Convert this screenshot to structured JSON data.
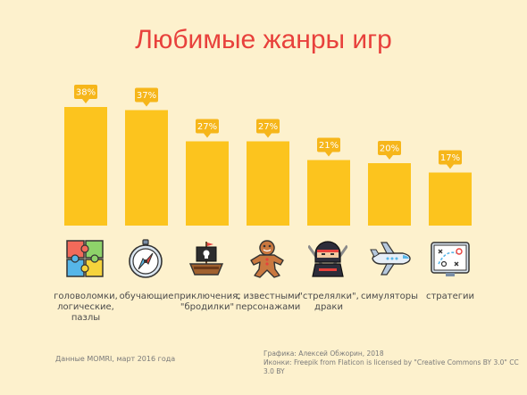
{
  "chart_data": {
    "type": "bar",
    "title": "Любимые жанры игр",
    "categories": [
      "головоломки, логические, пазлы",
      "обучающие",
      "приключения, \"бродилки\"",
      "с известными персонажами",
      "\"стрелялки\", драки",
      "симуляторы",
      "стратегии"
    ],
    "category_lines": [
      [
        "головоломки,",
        "логические,",
        "пазлы"
      ],
      [
        "обучающие"
      ],
      [
        "приключения,",
        "\"бродилки\""
      ],
      [
        "с известными",
        "персонажами"
      ],
      [
        "\"стрелялки\",",
        "драки"
      ],
      [
        "симуляторы"
      ],
      [
        "стратегии"
      ]
    ],
    "values": [
      38,
      37,
      27,
      27,
      21,
      20,
      17
    ],
    "value_labels": [
      "38%",
      "37%",
      "27%",
      "27%",
      "21%",
      "20%",
      "17%"
    ],
    "ylim": [
      0,
      38
    ],
    "xlabel": "",
    "ylabel": "",
    "grid": false,
    "colors": {
      "bar": "#fcc41e",
      "badge": "#f6b61a",
      "title": "#e8413c"
    }
  },
  "icons": [
    "puzzle-icon",
    "compass-icon",
    "pirate-ship-icon",
    "gingerbread-man-icon",
    "ninja-icon",
    "airplane-icon",
    "strategy-board-icon"
  ],
  "footer": {
    "source": "Данные MOMRI, март 2016 года",
    "credit_line1": "Графика: Алексей Обжорин, 2018",
    "credit_line2": "Иконки: Freepik  from Flaticon  is licensed by \"Creative Commons BY 3.0\" CC 3.0 BY"
  }
}
